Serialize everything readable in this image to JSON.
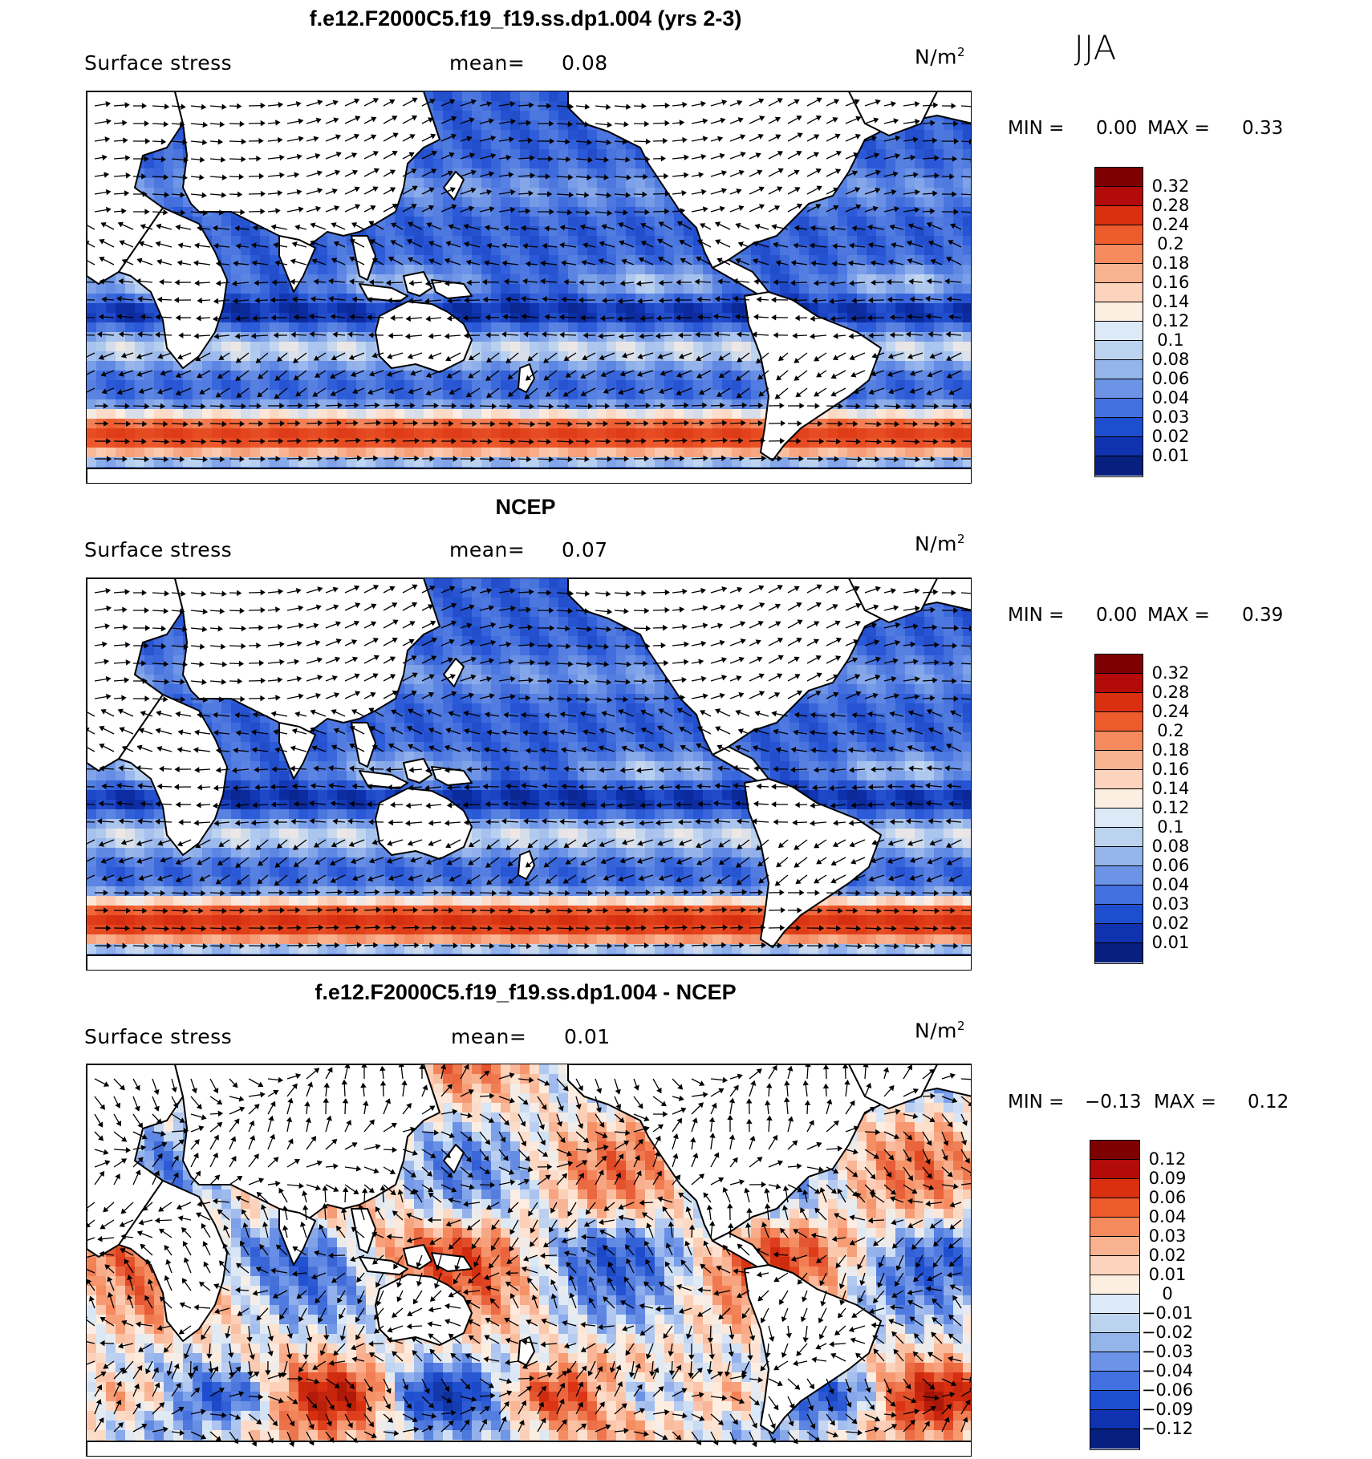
{
  "season": "JJA",
  "panels": [
    {
      "title": "f.e12.F2000C5.f19_f19.ss.dp1.004 (yrs 2-3)",
      "variable": "Surface stress",
      "mean_label": "mean=",
      "mean_value": "0.08",
      "unit": "N/m",
      "unit_exp": "2",
      "min_label": "MIN =",
      "min_value": "0.00",
      "max_label": "MAX =",
      "max_value": "0.33",
      "colorbar_labels": [
        "0.32",
        "0.28",
        "0.24",
        "0.2",
        "0.18",
        "0.16",
        "0.14",
        "0.12",
        "0.1",
        "0.08",
        "0.06",
        "0.04",
        "0.03",
        "0.02",
        "0.01"
      ],
      "colorbar_colors": [
        "#7f0000",
        "#b30a0a",
        "#d93010",
        "#ee5c2e",
        "#f58a5e",
        "#f9b28f",
        "#fcd3bc",
        "#fdeee2",
        "#dce9f6",
        "#bcd3f0",
        "#93b5ea",
        "#6c93e6",
        "#4270e0",
        "#1e4ed0",
        "#0e32b0",
        "#071f7e"
      ],
      "field_stops": [
        {
          "v": 0.0,
          "color": "#071f7e"
        },
        {
          "v": 0.02,
          "color": "#0e32b0"
        },
        {
          "v": 0.04,
          "color": "#2b5ad8"
        },
        {
          "v": 0.07,
          "color": "#6c93e6"
        },
        {
          "v": 0.1,
          "color": "#bcd3f0"
        },
        {
          "v": 0.12,
          "color": "#fdeee2"
        },
        {
          "v": 0.15,
          "color": "#f9b28f"
        },
        {
          "v": 0.2,
          "color": "#ee5c2e"
        },
        {
          "v": 0.26,
          "color": "#d93010"
        },
        {
          "v": 0.33,
          "color": "#8f0e0e"
        }
      ]
    },
    {
      "title": "NCEP",
      "variable": "Surface stress",
      "mean_label": "mean=",
      "mean_value": "0.07",
      "unit": "N/m",
      "unit_exp": "2",
      "min_label": "MIN =",
      "min_value": "0.00",
      "max_label": "MAX =",
      "max_value": "0.39",
      "colorbar_labels": [
        "0.32",
        "0.28",
        "0.24",
        "0.2",
        "0.18",
        "0.16",
        "0.14",
        "0.12",
        "0.1",
        "0.08",
        "0.06",
        "0.04",
        "0.03",
        "0.02",
        "0.01"
      ],
      "colorbar_colors": [
        "#7f0000",
        "#b30a0a",
        "#d93010",
        "#ee5c2e",
        "#f58a5e",
        "#f9b28f",
        "#fcd3bc",
        "#fdeee2",
        "#dce9f6",
        "#bcd3f0",
        "#93b5ea",
        "#6c93e6",
        "#4270e0",
        "#1e4ed0",
        "#0e32b0",
        "#071f7e"
      ],
      "field_stops": [
        {
          "v": 0.0,
          "color": "#071f7e"
        },
        {
          "v": 0.02,
          "color": "#0e32b0"
        },
        {
          "v": 0.04,
          "color": "#2b5ad8"
        },
        {
          "v": 0.07,
          "color": "#6c93e6"
        },
        {
          "v": 0.1,
          "color": "#bcd3f0"
        },
        {
          "v": 0.12,
          "color": "#fdeee2"
        },
        {
          "v": 0.15,
          "color": "#f9b28f"
        },
        {
          "v": 0.2,
          "color": "#ee5c2e"
        },
        {
          "v": 0.26,
          "color": "#d93010"
        },
        {
          "v": 0.33,
          "color": "#8f0e0e"
        }
      ]
    },
    {
      "title": "f.e12.F2000C5.f19_f19.ss.dp1.004 - NCEP",
      "variable": "Surface stress",
      "mean_label": "mean=",
      "mean_value": "0.01",
      "unit": "N/m",
      "unit_exp": "2",
      "min_label": "MIN =",
      "min_value": "−0.13",
      "max_label": "MAX =",
      "max_value": "0.12",
      "colorbar_labels": [
        "0.12",
        "0.09",
        "0.06",
        "0.04",
        "0.03",
        "0.02",
        "0.01",
        "0",
        "−0.01",
        "−0.02",
        "−0.03",
        "−0.04",
        "−0.06",
        "−0.09",
        "−0.12"
      ],
      "colorbar_colors": [
        "#7f0000",
        "#b30a0a",
        "#d93010",
        "#ee5c2e",
        "#f58a5e",
        "#f9b28f",
        "#fcd3bc",
        "#fdeee2",
        "#dce9f6",
        "#bcd3f0",
        "#93b5ea",
        "#6c93e6",
        "#4270e0",
        "#1e4ed0",
        "#0e32b0",
        "#071f7e"
      ],
      "field_stops": [
        {
          "v": -0.12,
          "color": "#071f7e"
        },
        {
          "v": -0.06,
          "color": "#1e4ed0"
        },
        {
          "v": -0.03,
          "color": "#6c93e6"
        },
        {
          "v": -0.01,
          "color": "#dce9f6"
        },
        {
          "v": 0.0,
          "color": "#fdeee2"
        },
        {
          "v": 0.01,
          "color": "#fcd3bc"
        },
        {
          "v": 0.03,
          "color": "#f58a5e"
        },
        {
          "v": 0.06,
          "color": "#d93010"
        },
        {
          "v": 0.12,
          "color": "#7f0000"
        }
      ]
    }
  ]
}
